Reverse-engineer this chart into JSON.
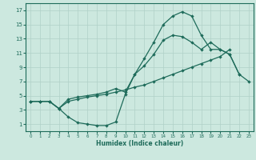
{
  "xlabel": "Humidex (Indice chaleur)",
  "bg_color": "#cce8df",
  "grid_color": "#b0d0c8",
  "line_color": "#1e6b5a",
  "xlim": [
    -0.5,
    23.5
  ],
  "ylim": [
    0,
    18
  ],
  "xticks": [
    0,
    1,
    2,
    3,
    4,
    5,
    6,
    7,
    8,
    9,
    10,
    11,
    12,
    13,
    14,
    15,
    16,
    17,
    18,
    19,
    20,
    21,
    22,
    23
  ],
  "yticks": [
    1,
    3,
    5,
    7,
    9,
    11,
    13,
    15,
    17
  ],
  "line1_x": [
    0,
    1,
    2,
    3,
    4,
    5,
    6,
    7,
    8,
    9,
    10,
    11,
    12,
    13,
    14,
    15,
    16,
    17,
    18,
    19,
    20,
    21,
    22
  ],
  "line1_y": [
    4.2,
    4.2,
    4.2,
    3.2,
    2.0,
    1.2,
    1.0,
    0.8,
    0.8,
    1.3,
    5.2,
    8.0,
    10.2,
    12.5,
    15.0,
    16.2,
    16.8,
    16.2,
    13.5,
    11.5,
    11.5,
    10.8,
    8.0
  ],
  "line2_x": [
    0,
    1,
    2,
    3,
    4,
    5,
    6,
    7,
    8,
    9,
    10,
    11,
    12,
    13,
    14,
    15,
    16,
    17,
    18,
    19,
    20,
    21
  ],
  "line2_y": [
    4.2,
    4.2,
    4.2,
    3.2,
    4.2,
    4.5,
    4.8,
    5.0,
    5.2,
    5.5,
    5.8,
    6.2,
    6.5,
    7.0,
    7.5,
    8.0,
    8.5,
    9.0,
    9.5,
    10.0,
    10.5,
    11.5
  ],
  "line3_x": [
    0,
    1,
    2,
    3,
    4,
    5,
    6,
    7,
    8,
    9,
    10,
    11,
    12,
    13,
    14,
    15,
    16,
    17,
    18,
    19,
    20,
    21,
    22,
    23
  ],
  "line3_y": [
    4.2,
    4.2,
    4.2,
    3.2,
    4.5,
    4.8,
    5.0,
    5.2,
    5.5,
    6.0,
    5.5,
    8.0,
    9.2,
    10.8,
    12.8,
    13.5,
    13.3,
    12.5,
    11.5,
    12.5,
    11.5,
    10.8,
    8.0,
    7.0
  ]
}
